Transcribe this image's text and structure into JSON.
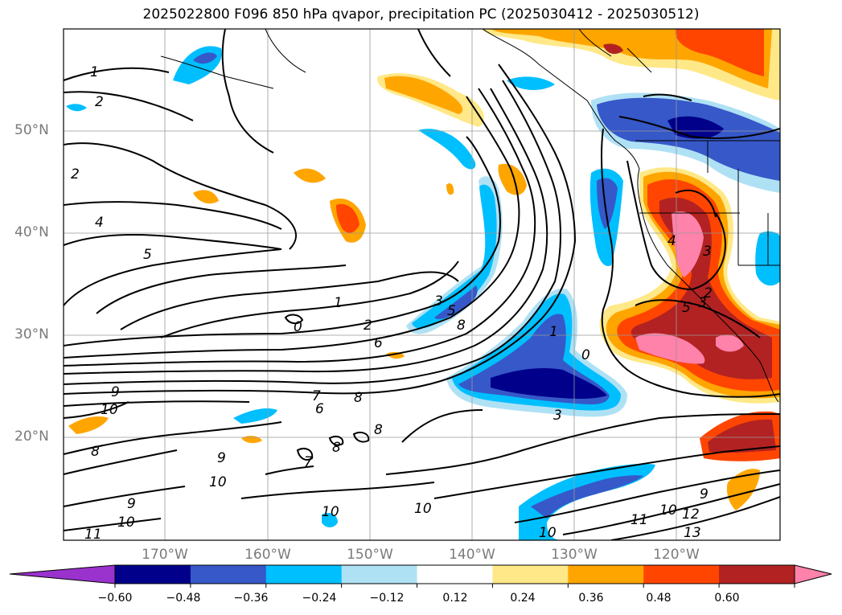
{
  "title": "2025022800 F096 850 hPa qvapor, precipitation PC (2025030412 - 2025030512)",
  "latitude_labels": [
    "50°N",
    "40°N",
    "30°N",
    "20°N"
  ],
  "longitude_labels": [
    "170°W",
    "160°W",
    "150°W",
    "140°W",
    "130°W",
    "120°W"
  ],
  "colorbar": {
    "colors": [
      "#9a32cd",
      "#00008b",
      "#3658c8",
      "#00bfff",
      "#afe1f5",
      "#ffffff",
      "#ffe887",
      "#ffa500",
      "#ff4500",
      "#b22222",
      "#ff82ab"
    ],
    "tick_labels": [
      "−0.60",
      "−0.48",
      "−0.36",
      "−0.24",
      "−0.12",
      "0.12",
      "0.24",
      "0.36",
      "0.48",
      "0.60"
    ]
  },
  "contour_labels": [
    "1",
    "2",
    "2",
    "4",
    "5",
    "1",
    "0",
    "2",
    "6",
    "3",
    "5",
    "8",
    "1",
    "0",
    "2",
    "4",
    "3",
    "5",
    "3",
    "3",
    "10",
    "9",
    "7",
    "6",
    "8",
    "8",
    "8",
    "7",
    "9",
    "10",
    "9",
    "10",
    "11",
    "10",
    "10",
    "11",
    "10",
    "12",
    "13",
    "9",
    "8",
    "10"
  ]
}
